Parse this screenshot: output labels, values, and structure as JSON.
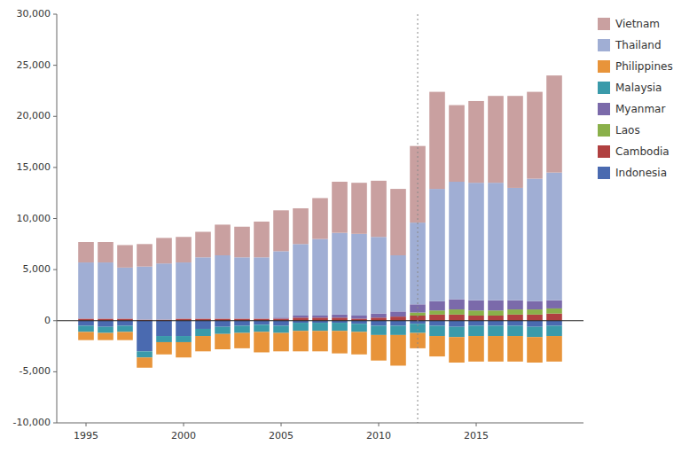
{
  "chart_data": {
    "type": "bar",
    "stacked": true,
    "grid": false,
    "legend": "right",
    "x": [
      1995,
      1996,
      1997,
      1998,
      1999,
      2000,
      2001,
      2002,
      2003,
      2004,
      2005,
      2006,
      2007,
      2008,
      2009,
      2010,
      2011,
      2012,
      2013,
      2014,
      2015,
      2016,
      2017,
      2018,
      2019
    ],
    "xlim": [
      1993.5,
      2020.5
    ],
    "xticks": [
      1995,
      2000,
      2005,
      2010,
      2015
    ],
    "ylim": [
      -10000,
      30000
    ],
    "yticks": [
      {
        "value": -10000,
        "label": "-10,000"
      },
      {
        "value": -5000,
        "label": "-5,000"
      },
      0,
      {
        "value": 5000,
        "label": "5,000"
      },
      {
        "value": 10000,
        "label": "10,000"
      },
      {
        "value": 15000,
        "label": "15,000"
      },
      {
        "value": 20000,
        "label": "20,000"
      },
      {
        "value": 25000,
        "label": "25,000"
      },
      {
        "value": 30000,
        "label": "30,000"
      }
    ],
    "vline_x": 2012,
    "series": [
      {
        "name": "Vietnam",
        "color": "#c9a0a0",
        "values": [
          2000,
          2000,
          2200,
          2200,
          2500,
          2500,
          2500,
          3000,
          3000,
          3500,
          4000,
          3500,
          4000,
          5000,
          5000,
          5500,
          6500,
          7500,
          9500,
          7500,
          8000,
          8500,
          9000,
          8500,
          9500
        ]
      },
      {
        "name": "Thailand",
        "color": "#a0aed4",
        "values": [
          5500,
          5500,
          5000,
          5200,
          5500,
          5500,
          6000,
          6200,
          6000,
          6000,
          6500,
          7000,
          7500,
          8000,
          8000,
          7500,
          5500,
          8000,
          11000,
          11500,
          11500,
          11500,
          11000,
          12000,
          12500
        ]
      },
      {
        "name": "Philippines",
        "color": "#e8943a",
        "values": [
          -800,
          -700,
          -800,
          -1000,
          -1200,
          -1500,
          -1500,
          -1500,
          -1500,
          -2000,
          -1800,
          -2000,
          -2000,
          -2200,
          -2200,
          -2500,
          -3000,
          -1500,
          -2000,
          -2500,
          -2500,
          -2500,
          -2500,
          -2500,
          -2500
        ]
      },
      {
        "name": "Malaysia",
        "color": "#3a9aaa",
        "values": [
          -600,
          -600,
          -600,
          -600,
          -600,
          -600,
          -700,
          -700,
          -700,
          -700,
          -700,
          -800,
          -800,
          -800,
          -800,
          -900,
          -900,
          -900,
          -1000,
          -1000,
          -1000,
          -1000,
          -1000,
          -1000,
          -1000
        ]
      },
      {
        "name": "Myanmar",
        "color": "#7b6aaa",
        "values": [
          0,
          0,
          0,
          0,
          0,
          0,
          0,
          0,
          0,
          0,
          100,
          200,
          200,
          300,
          300,
          400,
          500,
          800,
          900,
          1000,
          1000,
          1000,
          900,
          800,
          800
        ]
      },
      {
        "name": "Laos",
        "color": "#8ab04a",
        "values": [
          0,
          0,
          0,
          0,
          0,
          0,
          0,
          0,
          0,
          0,
          0,
          0,
          0,
          0,
          0,
          0,
          0,
          300,
          400,
          500,
          500,
          500,
          500,
          500,
          500
        ]
      },
      {
        "name": "Cambodia",
        "color": "#b04040",
        "values": [
          200,
          200,
          200,
          100,
          100,
          200,
          200,
          200,
          200,
          200,
          200,
          300,
          300,
          300,
          200,
          300,
          400,
          500,
          600,
          600,
          500,
          500,
          600,
          600,
          700
        ]
      },
      {
        "name": "Indonesia",
        "color": "#4a6ab0",
        "values": [
          -500,
          -600,
          -500,
          -3000,
          -1500,
          -1500,
          -800,
          -600,
          -500,
          -400,
          -500,
          -200,
          -200,
          -200,
          -300,
          -500,
          -500,
          -300,
          -500,
          -600,
          -500,
          -500,
          -500,
          -600,
          -500
        ]
      }
    ]
  }
}
